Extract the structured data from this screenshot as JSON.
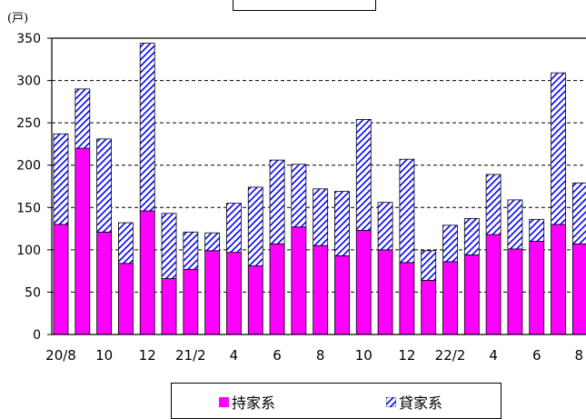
{
  "title": "",
  "unit_label": "(戸)",
  "colors": {
    "owned": "#ff00ff",
    "rental_stripe": "#0000ff"
  },
  "legend": {
    "owned": "持家系",
    "rental": "貸家系"
  },
  "chart_data": {
    "type": "bar",
    "stacked": true,
    "ylabel": "(戸)",
    "ylim": [
      0,
      350
    ],
    "yticks": [
      0,
      50,
      100,
      150,
      200,
      250,
      300,
      350
    ],
    "grid": "horizontal dashed",
    "legend_position": "bottom",
    "categories": [
      "20/8",
      "9",
      "10",
      "11",
      "12",
      "21/1",
      "21/2",
      "3",
      "4",
      "5",
      "6",
      "7",
      "8",
      "9",
      "10",
      "11",
      "12",
      "22/1",
      "22/2",
      "3",
      "4",
      "5",
      "6",
      "7",
      "8"
    ],
    "x_tick_labels": [
      "20/8",
      "",
      "10",
      "",
      "12",
      "",
      "21/2",
      "",
      "4",
      "",
      "6",
      "",
      "8",
      "",
      "10",
      "",
      "12",
      "",
      "22/2",
      "",
      "4",
      "",
      "6",
      "",
      "8"
    ],
    "series": [
      {
        "name": "持家系",
        "values": [
          130,
          220,
          121,
          84,
          146,
          66,
          77,
          99,
          97,
          81,
          107,
          127,
          105,
          93,
          123,
          100,
          85,
          64,
          86,
          94,
          118,
          101,
          110,
          130,
          107
        ]
      },
      {
        "name": "貸家系",
        "values": [
          107,
          70,
          110,
          48,
          198,
          77,
          44,
          21,
          58,
          93,
          99,
          74,
          67,
          76,
          131,
          56,
          122,
          35,
          43,
          43,
          71,
          58,
          26,
          179,
          72
        ]
      }
    ]
  }
}
